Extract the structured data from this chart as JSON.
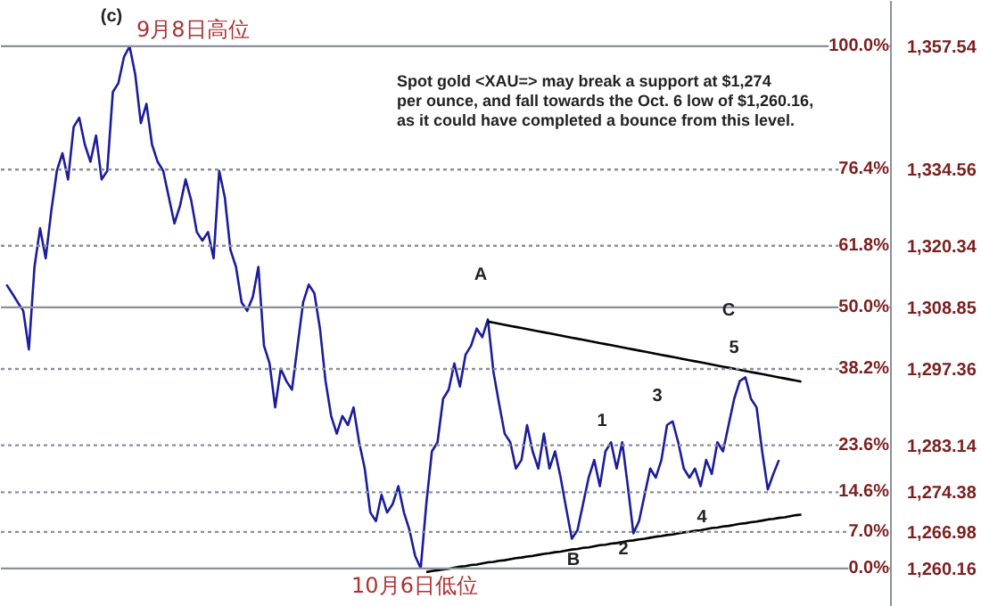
{
  "chart_data": {
    "type": "line",
    "tick_labels": "y",
    "categories": [
      null,
      null,
      null,
      null,
      null,
      null,
      null,
      null,
      null,
      null,
      null,
      null,
      null,
      null,
      null,
      null,
      null,
      null,
      null,
      null,
      null,
      null,
      null,
      null,
      null,
      null,
      null,
      null,
      null,
      null,
      null,
      null,
      null,
      null,
      null,
      null,
      null,
      null,
      null,
      null,
      null,
      null,
      null,
      null,
      null,
      null,
      null,
      null,
      null,
      null,
      null,
      null,
      null,
      null,
      null,
      null,
      null,
      null,
      null,
      null,
      null,
      null,
      null,
      null,
      null,
      null,
      null,
      null,
      null,
      null,
      null,
      null,
      null,
      null,
      null,
      null,
      null,
      null,
      null,
      null,
      null,
      null,
      null,
      null,
      null,
      null,
      null,
      null,
      null,
      null,
      null,
      null,
      null,
      null,
      null,
      null,
      null,
      null,
      null,
      null,
      null,
      null,
      null,
      null,
      null,
      null,
      null,
      null,
      null,
      null,
      null,
      null,
      null,
      null,
      null,
      null,
      null,
      null,
      null,
      null,
      null,
      null,
      null,
      null,
      null,
      null,
      null,
      null,
      null,
      null,
      null,
      null,
      null,
      null,
      null,
      null,
      null,
      null,
      null,
      null,
      null,
      null,
      null
    ],
    "ylim": [
      1253,
      1366
    ],
    "yticks": [
      {
        "value": 1357.54,
        "label": "1,357.54"
      },
      {
        "value": 1334.56,
        "label": "1,334.56"
      },
      {
        "value": 1320.34,
        "label": "1,320.34"
      },
      {
        "value": 1308.85,
        "label": "1,308.85"
      },
      {
        "value": 1297.36,
        "label": "1,297.36"
      },
      {
        "value": 1283.14,
        "label": "1,283.14"
      },
      {
        "value": 1274.38,
        "label": "1,274.38"
      },
      {
        "value": 1266.98,
        "label": "1,266.98"
      },
      {
        "value": 1260.16,
        "label": "1,260.16"
      }
    ],
    "series": [
      {
        "color": "#1c1c9c",
        "values": [
          1313.1,
          1311.5,
          1309.8,
          1308.2,
          1301.0,
          1316.4,
          1323.6,
          1318.0,
          1326.8,
          1334.3,
          1337.6,
          1332.7,
          1342.5,
          1344.2,
          1339.2,
          1336.0,
          1340.9,
          1332.7,
          1334.3,
          1349.0,
          1350.7,
          1355.6,
          1357.5,
          1352.3,
          1343.2,
          1346.8,
          1339.2,
          1336.0,
          1334.3,
          1329.4,
          1324.5,
          1327.8,
          1332.7,
          1328.8,
          1322.9,
          1321.3,
          1322.9,
          1318.0,
          1334.3,
          1329.4,
          1319.6,
          1316.4,
          1309.8,
          1308.2,
          1310.8,
          1316.4,
          1301.7,
          1298.4,
          1290.2,
          1297.4,
          1295.1,
          1293.5,
          1301.7,
          1309.8,
          1313.1,
          1311.5,
          1304.9,
          1295.1,
          1288.6,
          1285.3,
          1288.6,
          1286.9,
          1290.2,
          1283.7,
          1278.8,
          1270.6,
          1269.0,
          1273.9,
          1270.6,
          1272.2,
          1275.5,
          1270.6,
          1267.3,
          1262.5,
          1260.2,
          1272.2,
          1282.0,
          1283.7,
          1291.8,
          1293.5,
          1298.4,
          1294.1,
          1300.0,
          1301.7,
          1304.9,
          1303.3,
          1306.6,
          1296.8,
          1290.9,
          1285.3,
          1283.7,
          1278.8,
          1280.4,
          1286.9,
          1282.0,
          1278.8,
          1285.3,
          1278.8,
          1282.0,
          1277.1,
          1271.3,
          1265.7,
          1267.3,
          1272.2,
          1277.1,
          1280.4,
          1275.5,
          1282.0,
          1283.7,
          1278.8,
          1283.7,
          1275.5,
          1266.7,
          1269.0,
          1273.9,
          1278.8,
          1277.1,
          1280.4,
          1286.9,
          1287.6,
          1283.7,
          1278.8,
          1277.1,
          1278.8,
          1275.5,
          1280.4,
          1277.8,
          1283.7,
          1282.0,
          1286.9,
          1291.8,
          1295.1,
          1295.8,
          1291.8,
          1290.2,
          1282.0,
          1274.9,
          1277.8,
          1280.4,
          null,
          null,
          null,
          null
        ]
      },
      {
        "color": "#000000",
        "values": [
          null,
          null,
          null,
          null,
          null,
          null,
          null,
          null,
          null,
          null,
          null,
          null,
          null,
          null,
          null,
          null,
          null,
          null,
          null,
          null,
          null,
          null,
          null,
          null,
          null,
          null,
          null,
          null,
          null,
          null,
          null,
          null,
          null,
          null,
          null,
          null,
          null,
          null,
          null,
          null,
          null,
          null,
          null,
          null,
          null,
          null,
          null,
          null,
          null,
          null,
          null,
          null,
          null,
          null,
          null,
          null,
          null,
          null,
          null,
          null,
          null,
          null,
          null,
          null,
          null,
          null,
          null,
          null,
          null,
          null,
          null,
          null,
          null,
          null,
          null,
          null,
          null,
          null,
          null,
          null,
          null,
          null,
          null,
          null,
          null,
          null,
          1306.2,
          1306.0,
          1305.8,
          1305.6,
          1305.4,
          1305.2,
          1305.0,
          1304.8,
          1304.6,
          1304.4,
          1304.2,
          1304.0,
          1303.8,
          1303.6,
          1303.4,
          1303.2,
          1303.0,
          1302.8,
          1302.6,
          1302.4,
          1302.2,
          1302.0,
          1301.8,
          1301.6,
          1301.4,
          1301.2,
          1301.0,
          1300.8,
          1300.6,
          1300.4,
          1300.2,
          1300.0,
          1299.8,
          1299.6,
          1299.4,
          1299.2,
          1299.0,
          1298.8,
          1298.6,
          1298.4,
          1298.2,
          1298.0,
          1297.8,
          1297.6,
          1297.4,
          1297.2,
          1297.0,
          1296.8,
          1296.6,
          1296.4,
          1296.2,
          1296.0,
          1295.8,
          1295.6,
          1295.4,
          1295.2,
          1295.0
        ]
      },
      {
        "color": "#000000",
        "values": [
          null,
          null,
          null,
          null,
          null,
          null,
          null,
          null,
          null,
          null,
          null,
          null,
          null,
          null,
          null,
          null,
          null,
          null,
          null,
          null,
          null,
          null,
          null,
          null,
          null,
          null,
          null,
          null,
          null,
          null,
          null,
          null,
          null,
          null,
          null,
          null,
          null,
          null,
          null,
          null,
          null,
          null,
          null,
          null,
          null,
          null,
          null,
          null,
          null,
          null,
          null,
          null,
          null,
          null,
          null,
          null,
          null,
          null,
          null,
          null,
          null,
          null,
          null,
          null,
          null,
          null,
          null,
          null,
          null,
          null,
          null,
          null,
          null,
          null,
          null,
          1259.5,
          1259.7,
          1259.8,
          1260.0,
          1260.1,
          1260.3,
          1260.5,
          1260.6,
          1260.8,
          1260.9,
          1261.1,
          1261.3,
          1261.4,
          1261.6,
          1261.7,
          1261.9,
          1262.1,
          1262.2,
          1262.4,
          1262.5,
          1262.7,
          1262.9,
          1263.0,
          1263.2,
          1263.3,
          1263.5,
          1263.7,
          1263.8,
          1264.0,
          1264.1,
          1264.3,
          1264.5,
          1264.6,
          1264.8,
          1264.9,
          1265.1,
          1265.3,
          1265.4,
          1265.6,
          1265.7,
          1265.9,
          1266.1,
          1266.2,
          1266.4,
          1266.5,
          1266.7,
          1266.9,
          1267.0,
          1267.2,
          1267.3,
          1267.5,
          1267.7,
          1267.8,
          1268.0,
          1268.1,
          1268.3,
          1268.5,
          1268.6,
          1268.8,
          1268.9,
          1269.1,
          1269.3,
          1269.4,
          1269.6,
          1269.7,
          1269.9,
          1270.1,
          1270.2
        ]
      }
    ],
    "ref_lines": [
      {
        "axis": "y",
        "value": 1357.54,
        "color": "#8a9099",
        "line_style": "solid"
      },
      {
        "axis": "y",
        "value": 1334.56,
        "color": "#8a9099",
        "line_style": "dotted"
      },
      {
        "axis": "y",
        "value": 1320.34,
        "color": "#8a9099",
        "line_style": "dotted"
      },
      {
        "axis": "y",
        "value": 1308.85,
        "color": "#8a9099",
        "line_style": "solid"
      },
      {
        "axis": "y",
        "value": 1297.36,
        "color": "#8a9099",
        "line_style": "dotted"
      },
      {
        "axis": "y",
        "value": 1283.14,
        "color": "#8a9099",
        "line_style": "dotted"
      },
      {
        "axis": "y",
        "value": 1274.38,
        "color": "#8a9099",
        "line_style": "dotted"
      },
      {
        "axis": "y",
        "value": 1266.98,
        "color": "#8a9099",
        "line_style": "dotted"
      },
      {
        "axis": "y",
        "value": 1260.16,
        "color": "#8a9099",
        "line_style": "solid"
      }
    ],
    "annotations": [
      "Spot gold <XAU=> may break a support at $1,274\nper ounce, and fall towards the Oct. 6 low of $1,260.16,\nas it could have completed a bounce from this level.",
      "(c)",
      "9月8日高位",
      "10月6日低位",
      "A",
      "B",
      "C",
      "5",
      "1",
      "2",
      "3",
      "4",
      {
        "text": "100.0%",
        "y": 1357.54
      },
      {
        "text": "76.4%",
        "y": 1334.56
      },
      {
        "text": "61.8%",
        "y": 1320.34
      },
      {
        "text": "50.0%",
        "y": 1308.85
      },
      {
        "text": "38.2%",
        "y": 1297.36
      },
      {
        "text": "23.6%",
        "y": 1283.14
      },
      {
        "text": "14.6%",
        "y": 1274.38
      },
      {
        "text": "7.0%",
        "y": 1266.98
      },
      {
        "text": "0.0%",
        "y": 1260.16
      }
    ]
  }
}
